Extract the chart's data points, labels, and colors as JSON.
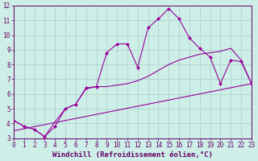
{
  "xlabel": "Windchill (Refroidissement éolien,°C)",
  "background_color": "#ceeee8",
  "grid_color": "#aed4ce",
  "line_color": "#990099",
  "xlim": [
    0,
    23
  ],
  "ylim": [
    3,
    12
  ],
  "xtick_labels": [
    "0",
    "1",
    "2",
    "3",
    "4",
    "5",
    "6",
    "7",
    "8",
    "9",
    "10",
    "11",
    "12",
    "13",
    "14",
    "15",
    "16",
    "17",
    "18",
    "19",
    "20",
    "21",
    "22",
    "23"
  ],
  "ytick_labels": [
    "3",
    "4",
    "5",
    "6",
    "7",
    "8",
    "9",
    "10",
    "11",
    "12"
  ],
  "ytick_vals": [
    3,
    4,
    5,
    6,
    7,
    8,
    9,
    10,
    11,
    12
  ],
  "line1_x": [
    0,
    1,
    2,
    3,
    4,
    5,
    6,
    7,
    8,
    9,
    10,
    11,
    12,
    13,
    14,
    15,
    16,
    17,
    18,
    19,
    20,
    21,
    22,
    23
  ],
  "line1_y": [
    4.2,
    3.8,
    3.6,
    3.1,
    3.8,
    5.0,
    5.3,
    6.4,
    6.5,
    8.8,
    9.4,
    9.4,
    7.8,
    10.5,
    11.1,
    11.8,
    11.1,
    9.8,
    9.1,
    8.5,
    6.7,
    8.3,
    8.2,
    6.7
  ],
  "line2_x": [
    0,
    1,
    2,
    3,
    4,
    5,
    6,
    7,
    8,
    9,
    10,
    11,
    12,
    13,
    14,
    15,
    16,
    17,
    18,
    19,
    20,
    21,
    22,
    23
  ],
  "line2_y": [
    4.2,
    3.8,
    3.6,
    3.1,
    4.1,
    5.0,
    5.3,
    6.35,
    6.5,
    6.5,
    6.6,
    6.7,
    6.9,
    7.2,
    7.6,
    8.0,
    8.3,
    8.5,
    8.7,
    8.8,
    8.9,
    9.1,
    8.3,
    6.7
  ],
  "line3_x": [
    0,
    23
  ],
  "line3_y": [
    3.5,
    6.7
  ],
  "font_color": "#660066",
  "tick_fontsize": 5.5,
  "xlabel_fontsize": 6.5
}
